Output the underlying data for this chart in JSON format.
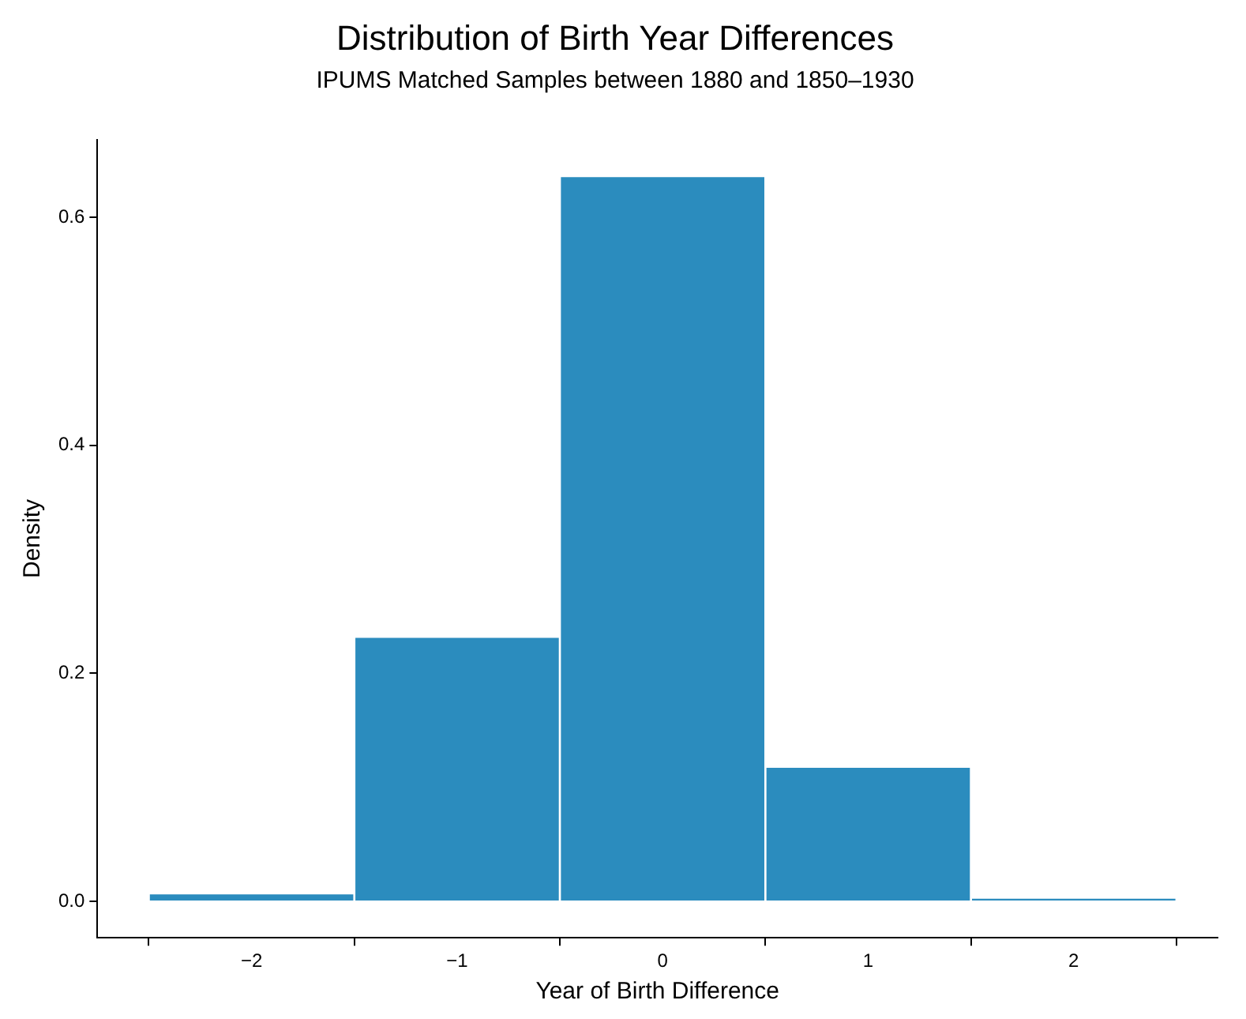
{
  "chart_data": {
    "type": "histogram",
    "title": "Distribution of Birth Year Differences",
    "subtitle": "IPUMS Matched Samples between 1880 and 1850–1930",
    "xlabel": "Year of Birth Difference",
    "ylabel": "Density",
    "bins": [
      -2.5,
      -1.5,
      -0.5,
      0.5,
      1.5,
      2.5
    ],
    "values": [
      0.007,
      0.232,
      0.636,
      0.118,
      0.003
    ],
    "color": "#2b8cbe",
    "xlim": [
      -2.75,
      2.7
    ],
    "xticks": [
      {
        "value": -2,
        "label": "−2"
      },
      {
        "value": -1,
        "label": "−1"
      },
      0,
      1,
      2
    ],
    "ylim": [
      -0.032,
      0.668
    ],
    "yticks": [
      {
        "value": 0,
        "label": "0.0"
      },
      0.2,
      0.4,
      0.6
    ],
    "grid": false,
    "legend": false
  }
}
